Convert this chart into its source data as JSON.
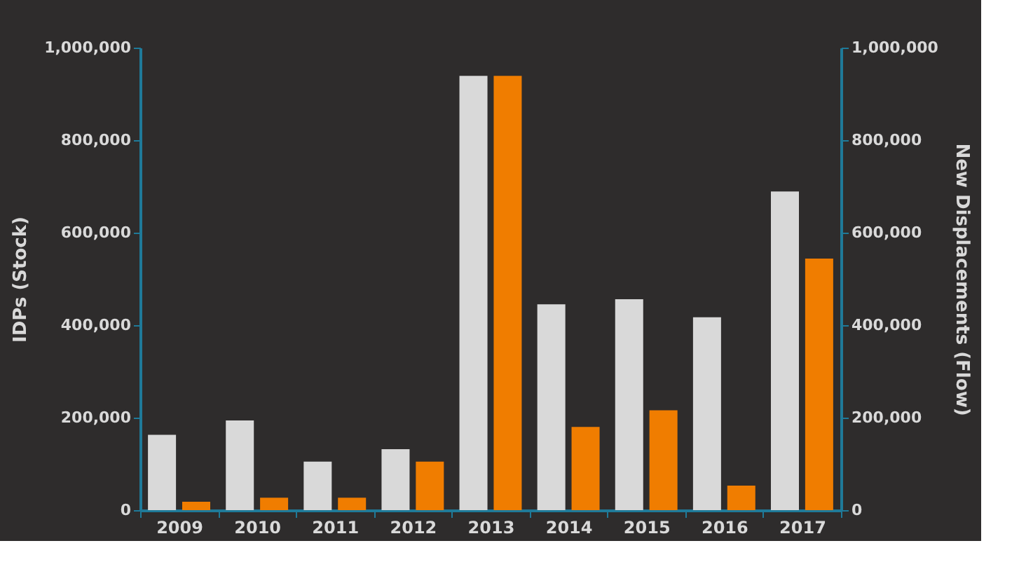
{
  "chart_data": {
    "type": "bar",
    "ylabel": "IDPs (Stock)",
    "y2label": "New Displacements (Flow)",
    "categories": [
      "2009",
      "2010",
      "2011",
      "2012",
      "2013",
      "2014",
      "2015",
      "2016",
      "2017"
    ],
    "series": [
      {
        "color": "#d9d9d9",
        "values": [
          163000,
          194000,
          105000,
          132000,
          939000,
          445000,
          456000,
          417000,
          689000
        ]
      },
      {
        "color": "#f07d00",
        "axis": "y2",
        "values": [
          18000,
          27000,
          27000,
          105000,
          939000,
          180000,
          216000,
          53000,
          544000
        ]
      }
    ],
    "ylim": [
      0,
      1000000
    ],
    "yticks": [
      0,
      {
        "value": 200000,
        "label": "200,000"
      },
      {
        "value": 400000,
        "label": "400,000"
      },
      {
        "value": 600000,
        "label": "600,000"
      },
      {
        "value": 800000,
        "label": "800,000"
      },
      {
        "value": 1000000,
        "label": "1,000,000"
      }
    ],
    "y2lim": [
      0,
      1000000
    ],
    "y2ticks": [
      0,
      {
        "value": 200000,
        "label": "200,000"
      },
      {
        "value": 400000,
        "label": "400,000"
      },
      {
        "value": 600000,
        "label": "600,000"
      },
      {
        "value": 800000,
        "label": "800,000"
      },
      {
        "value": 1000000,
        "label": "1,000,000"
      }
    ],
    "grid": false
  }
}
